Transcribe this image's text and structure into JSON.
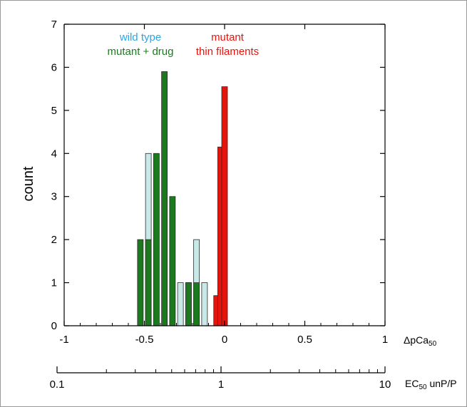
{
  "chart_data": {
    "type": "bar",
    "ylabel": "count",
    "ylim": [
      0,
      7
    ],
    "y_ticks": [
      "0",
      "1",
      "2",
      "3",
      "4",
      "5",
      "6",
      "7"
    ],
    "xlim": [
      -1,
      1
    ],
    "x_ticks": [
      {
        "value": -1,
        "label": "-1"
      },
      {
        "value": -0.5,
        "label": "-0.5"
      },
      {
        "value": 0,
        "label": "0"
      },
      {
        "value": 0.5,
        "label": "0.5"
      },
      {
        "value": 1,
        "label": "1"
      }
    ],
    "x_label_prefix": "ΔpCa",
    "x_label_sub": "50",
    "secondary_axis": {
      "scale": "log",
      "label_prefix": "EC",
      "label_sub": "50",
      "label_suffix": " unP/P",
      "ticks": [
        {
          "value": 0.1,
          "label": "0.1"
        },
        {
          "value": 1,
          "label": "1"
        },
        {
          "value": 10,
          "label": "10"
        }
      ]
    },
    "grid": false,
    "legend_placement": "top-center",
    "series": [
      {
        "name": "wild type",
        "color": "#c9e8e8",
        "x": [
          -0.475,
          -0.275,
          -0.225,
          -0.175,
          -0.125
        ],
        "values": [
          4,
          1,
          1,
          2,
          1
        ]
      },
      {
        "name": "mutant + drug",
        "color": "#1c7a1e",
        "x": [
          -0.525,
          -0.475,
          -0.425,
          -0.375,
          -0.325,
          -0.225,
          -0.175
        ],
        "values": [
          2,
          2,
          4,
          5.9,
          3,
          1,
          1
        ]
      },
      {
        "name": "mutant thin filaments",
        "color": "#e8140c",
        "x": [
          -0.05,
          -0.025,
          0.0
        ],
        "values": [
          0.7,
          4.15,
          5.55
        ]
      }
    ],
    "legend": [
      {
        "lines": [
          "wild type"
        ],
        "color": "#2aa6e8",
        "series": 0
      },
      {
        "lines": [
          "mutant + drug"
        ],
        "color": "#1c7a1e",
        "series": 1
      },
      {
        "lines": [
          "mutant",
          "thin filaments"
        ],
        "color": "#e8140c",
        "series": 2
      }
    ]
  }
}
